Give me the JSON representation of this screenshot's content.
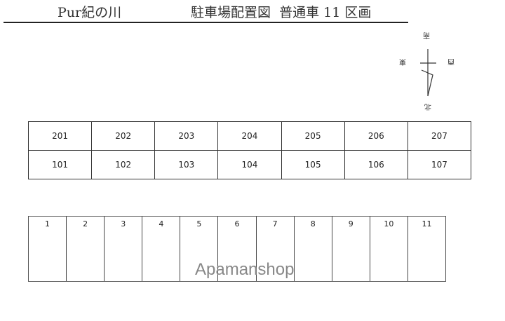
{
  "header": {
    "property": "Pur紀の川",
    "title": "駐車場配置図  普通車 11 区画"
  },
  "compass": {
    "south": "南",
    "east": "東",
    "west": "西",
    "north": "北"
  },
  "rooms": {
    "upper": [
      "201",
      "202",
      "203",
      "204",
      "205",
      "206",
      "207"
    ],
    "lower": [
      "101",
      "102",
      "103",
      "104",
      "105",
      "106",
      "107"
    ]
  },
  "parking": {
    "slots": [
      "1",
      "2",
      "3",
      "4",
      "5",
      "6",
      "7",
      "8",
      "9",
      "10",
      "11"
    ]
  },
  "watermark": "Apamanshop"
}
